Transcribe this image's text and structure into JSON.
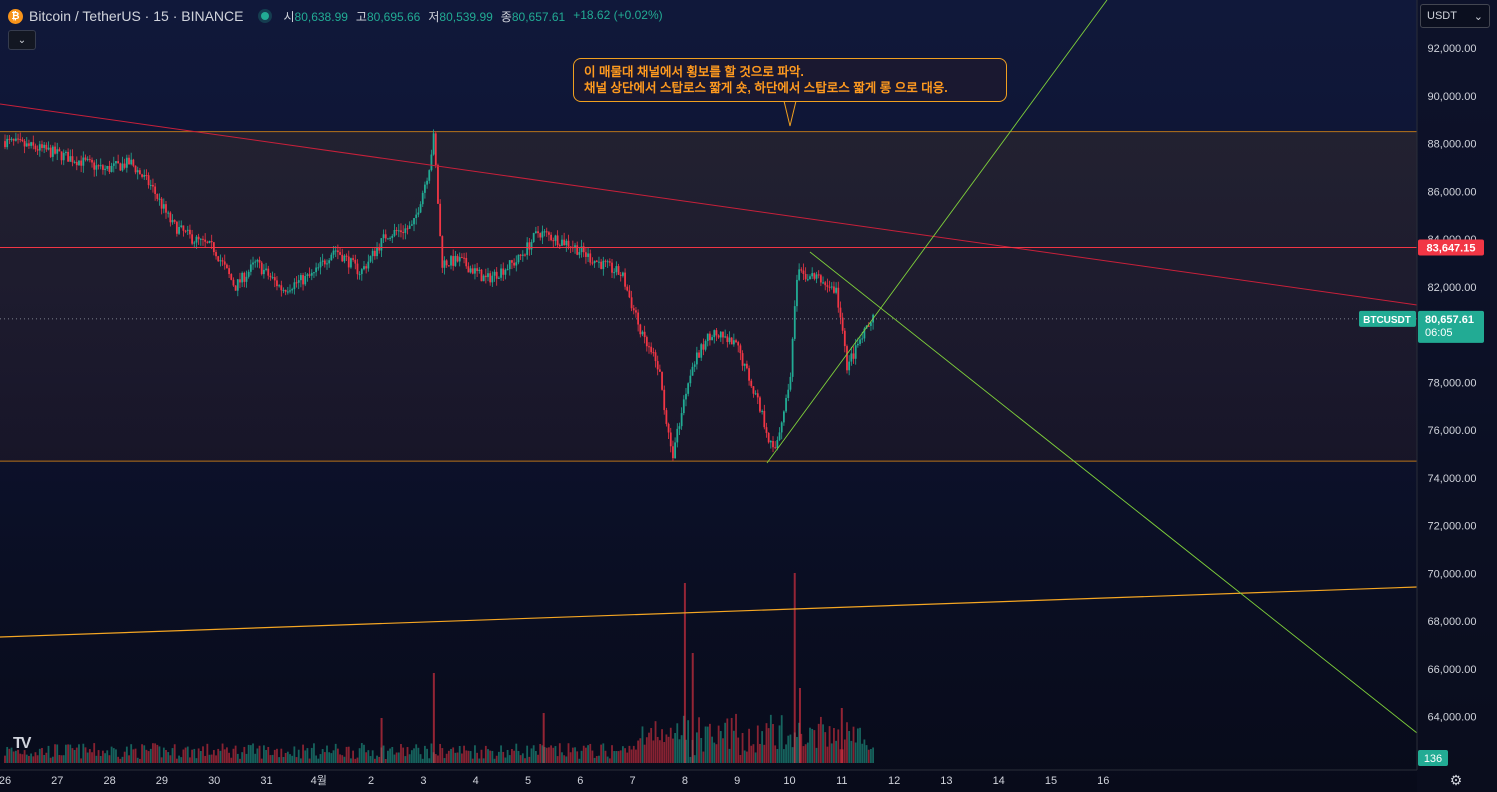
{
  "header": {
    "symbol": "Bitcoin / TetherUS · 15 · BINANCE",
    "open_label": "시",
    "open": "80,638.99",
    "high_label": "고",
    "high": "80,695.66",
    "low_label": "저",
    "low": "80,539.99",
    "close_label": "종",
    "close": "80,657.61",
    "change": "+18.62 (+0.02%)"
  },
  "currency_selector": "USDT",
  "callout": {
    "line1": "이 매물대 채널에서 횡보를 할 것으로 파악.",
    "line2": "채널 상단에서 스탑로스 짧게 숏, 하단에서 스탑로스 짧게 롱 으로 대응."
  },
  "price_tags": {
    "resistance": "83,647.15",
    "symbol_label": "BTCUSDT",
    "last_price": "80,657.61",
    "countdown": "06:05",
    "volume": "136"
  },
  "colors": {
    "up": "#22ab94",
    "down": "#f23645",
    "orange": "#f5a623",
    "red_line": "#e0243a",
    "green_line": "#7fd13b"
  },
  "icons": [
    "bitcoin-icon",
    "chevron-down-icon",
    "tradingview-logo-icon",
    "settings-icon"
  ],
  "chart_data": {
    "type": "candlestick",
    "y_axis": {
      "ticks": [
        64000,
        66000,
        68000,
        70000,
        72000,
        74000,
        76000,
        78000,
        80000,
        82000,
        84000,
        86000,
        88000,
        90000,
        92000
      ],
      "tick_labels": [
        "64,000.00",
        "66,000.00",
        "68,000.00",
        "70,000.00",
        "72,000.00",
        "74,000.00",
        "76,000.00",
        "78,000.00",
        "80,000.00",
        "82,000.00",
        "84,000.00",
        "86,000.00",
        "88,000.00",
        "90,000.00",
        "92,000.00"
      ]
    },
    "x_axis": {
      "tick_labels": [
        "26",
        "27",
        "28",
        "29",
        "30",
        "31",
        "4월",
        "2",
        "3",
        "4",
        "5",
        "6",
        "7",
        "8",
        "9",
        "10",
        "11",
        "12",
        "13",
        "14",
        "15",
        "16"
      ],
      "tick_days": [
        0,
        1,
        2,
        3,
        4,
        5,
        6,
        7,
        8,
        9,
        10,
        11,
        12,
        13,
        14,
        15,
        16,
        17,
        18,
        19,
        20,
        21
      ]
    },
    "price_path": [
      [
        0.0,
        88100
      ],
      [
        0.8,
        87700
      ],
      [
        1.4,
        87300
      ],
      [
        1.9,
        86900
      ],
      [
        2.4,
        87200
      ],
      [
        2.8,
        86200
      ],
      [
        3.2,
        84600
      ],
      [
        3.6,
        84000
      ],
      [
        4.0,
        83600
      ],
      [
        4.4,
        82000
      ],
      [
        4.8,
        83000
      ],
      [
        5.3,
        81900
      ],
      [
        5.9,
        82500
      ],
      [
        6.3,
        83600
      ],
      [
        6.8,
        82600
      ],
      [
        7.3,
        84200
      ],
      [
        7.8,
        84500
      ],
      [
        8.1,
        86900
      ],
      [
        8.2,
        88300
      ],
      [
        8.35,
        83000
      ],
      [
        8.7,
        83100
      ],
      [
        9.2,
        82300
      ],
      [
        9.8,
        83100
      ],
      [
        10.2,
        84300
      ],
      [
        10.8,
        83800
      ],
      [
        11.2,
        83200
      ],
      [
        11.8,
        82500
      ],
      [
        12.2,
        79800
      ],
      [
        12.5,
        78600
      ],
      [
        12.75,
        74800
      ],
      [
        13.1,
        78500
      ],
      [
        13.5,
        80100
      ],
      [
        14.0,
        79500
      ],
      [
        14.4,
        77200
      ],
      [
        14.7,
        75000
      ],
      [
        15.0,
        77900
      ],
      [
        15.15,
        82500
      ],
      [
        15.5,
        82400
      ],
      [
        15.9,
        81800
      ],
      [
        16.1,
        78700
      ],
      [
        16.4,
        79900
      ],
      [
        16.6,
        80660
      ]
    ],
    "annotations": {
      "channel_top": 88500,
      "channel_bottom": 74700,
      "resistance": 83647.15,
      "last": 80657.61
    }
  }
}
